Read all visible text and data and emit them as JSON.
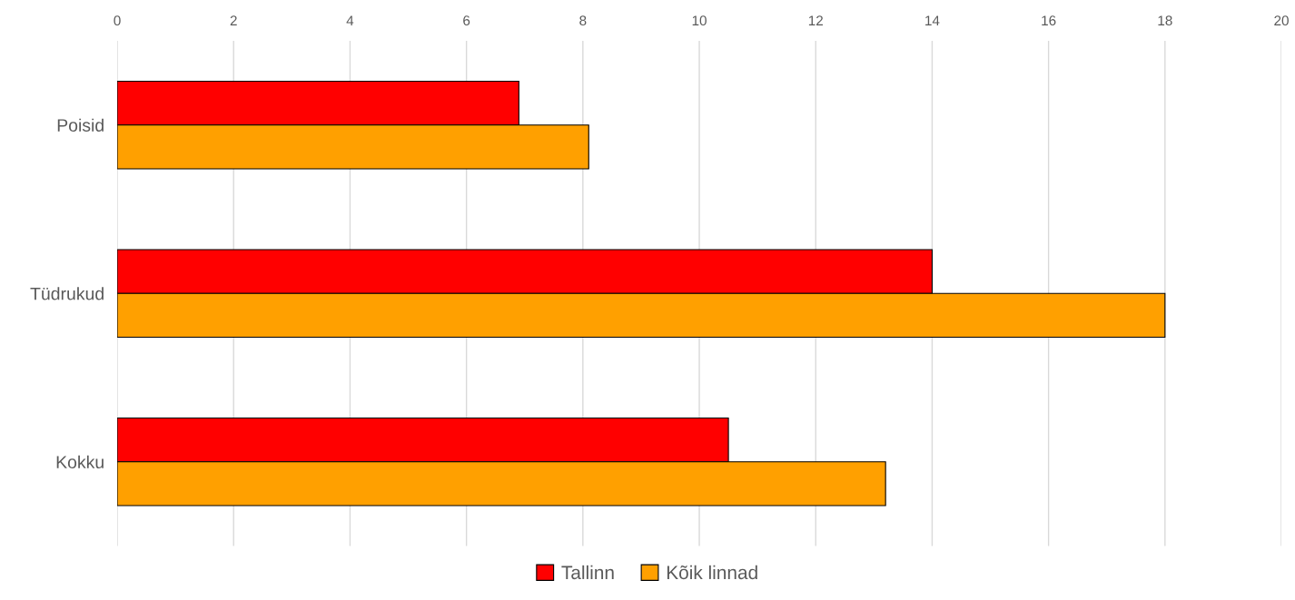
{
  "chart_data": {
    "type": "bar",
    "orientation": "horizontal",
    "categories": [
      "Poisid",
      "Tüdrukud",
      "Kokku"
    ],
    "series": [
      {
        "name": "Tallinn",
        "color": "#ff0000",
        "values": [
          6.9,
          14.0,
          10.5
        ]
      },
      {
        "name": "Kõik linnad",
        "color": "#ffa000",
        "values": [
          8.1,
          18.0,
          13.2
        ]
      }
    ],
    "xlim": [
      0,
      20
    ],
    "xticks": [
      0,
      2,
      4,
      6,
      8,
      10,
      12,
      14,
      16,
      18,
      20
    ],
    "grid": "x",
    "legend": "bottom"
  }
}
